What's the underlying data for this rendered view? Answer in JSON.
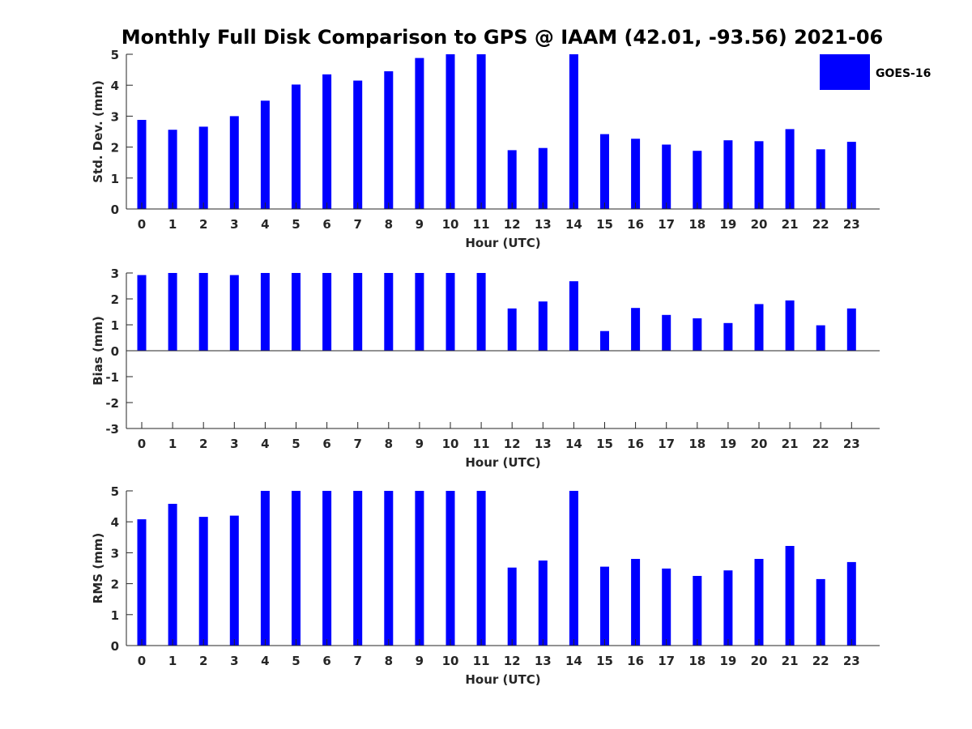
{
  "figure": {
    "title": "Monthly Full Disk Comparison to GPS @ IAAM (42.01, -93.56) 2021-06",
    "legend": {
      "label": "GOES-16",
      "color": "#0000ff"
    }
  },
  "chart_data": [
    {
      "type": "bar",
      "title": "Monthly Full Disk Comparison to GPS @ IAAM (42.01, -93.56) 2021-06",
      "xlabel": "Hour (UTC)",
      "ylabel": "Std. Dev. (mm)",
      "ylim": [
        0,
        5
      ],
      "yticks": [
        "0",
        "1",
        "2",
        "3",
        "4",
        "5"
      ],
      "categories": [
        "0",
        "1",
        "2",
        "3",
        "4",
        "5",
        "6",
        "7",
        "8",
        "9",
        "10",
        "11",
        "12",
        "13",
        "14",
        "15",
        "16",
        "17",
        "18",
        "19",
        "20",
        "21",
        "22",
        "23"
      ],
      "series": [
        {
          "name": "GOES-16",
          "color": "#0000ff",
          "values": [
            2.88,
            2.56,
            2.66,
            3.0,
            3.5,
            4.02,
            4.35,
            4.15,
            4.45,
            4.88,
            5.0,
            5.0,
            1.9,
            1.97,
            5.0,
            2.42,
            2.27,
            2.08,
            1.88,
            2.22,
            2.19,
            2.58,
            1.93,
            2.17
          ]
        }
      ],
      "legend": "top-right"
    },
    {
      "type": "bar",
      "xlabel": "Hour (UTC)",
      "ylabel": "Bias (mm)",
      "ylim": [
        -3,
        3
      ],
      "yticks": [
        "-3",
        "-2",
        "-1",
        "0",
        "1",
        "2",
        "3"
      ],
      "categories": [
        "0",
        "1",
        "2",
        "3",
        "4",
        "5",
        "6",
        "7",
        "8",
        "9",
        "10",
        "11",
        "12",
        "13",
        "14",
        "15",
        "16",
        "17",
        "18",
        "19",
        "20",
        "21",
        "22",
        "23"
      ],
      "series": [
        {
          "name": "GOES-16",
          "color": "#0000ff",
          "values": [
            2.92,
            3.0,
            3.0,
            2.92,
            3.0,
            3.0,
            3.0,
            3.0,
            3.0,
            3.0,
            3.0,
            3.0,
            1.63,
            1.9,
            2.68,
            0.76,
            1.65,
            1.38,
            1.25,
            1.07,
            1.8,
            1.94,
            0.98,
            1.63
          ]
        }
      ]
    },
    {
      "type": "bar",
      "xlabel": "Hour (UTC)",
      "ylabel": "RMS (mm)",
      "ylim": [
        0,
        5
      ],
      "yticks": [
        "0",
        "1",
        "2",
        "3",
        "4",
        "5"
      ],
      "categories": [
        "0",
        "1",
        "2",
        "3",
        "4",
        "5",
        "6",
        "7",
        "8",
        "9",
        "10",
        "11",
        "12",
        "13",
        "14",
        "15",
        "16",
        "17",
        "18",
        "19",
        "20",
        "21",
        "22",
        "23"
      ],
      "series": [
        {
          "name": "GOES-16",
          "color": "#0000ff",
          "values": [
            4.08,
            4.58,
            4.16,
            4.2,
            5.0,
            5.0,
            5.0,
            5.0,
            5.0,
            5.0,
            5.0,
            5.0,
            2.52,
            2.75,
            5.0,
            2.55,
            2.8,
            2.49,
            2.25,
            2.43,
            2.8,
            3.22,
            2.15,
            2.7
          ]
        }
      ]
    }
  ]
}
